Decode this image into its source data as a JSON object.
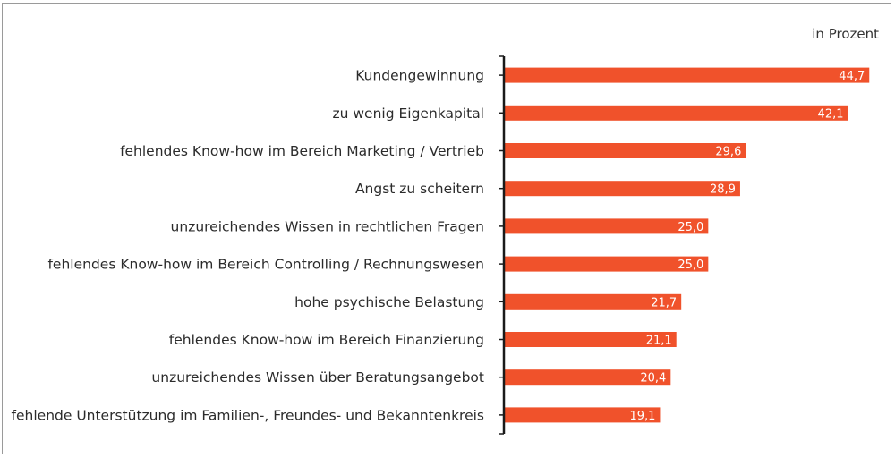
{
  "unit_label": "in Prozent",
  "colors": {
    "bar": "#f0522b",
    "axis": "#1a1a1a",
    "frame": "#9a9a9a"
  },
  "chart_data": {
    "type": "bar",
    "orientation": "horizontal",
    "categories": [
      "Kundengewinnung",
      "zu wenig Eigenkapital",
      "fehlendes Know-how im Bereich Marketing / Vertrieb",
      "Angst zu scheitern",
      "unzureichendes Wissen in rechtlichen Fragen",
      "fehlendes Know-how im Bereich Controlling / Rechnungswesen",
      "hohe psychische Belastung",
      "fehlendes Know-how im Bereich Finanzierung",
      "unzureichendes Wissen über Beratungsangebot",
      "fehlende Unterstützung im Familien-, Freundes- und Bekanntenkreis"
    ],
    "values": [
      44.7,
      42.1,
      29.6,
      28.9,
      25.0,
      25.0,
      21.7,
      21.1,
      20.4,
      19.1
    ],
    "value_labels": [
      "44,7",
      "42,1",
      "29,6",
      "28,9",
      "25,0",
      "25,0",
      "21,7",
      "21,1",
      "20,4",
      "19,1"
    ],
    "xlim": [
      0,
      45
    ],
    "grid": false,
    "legend": "none"
  }
}
